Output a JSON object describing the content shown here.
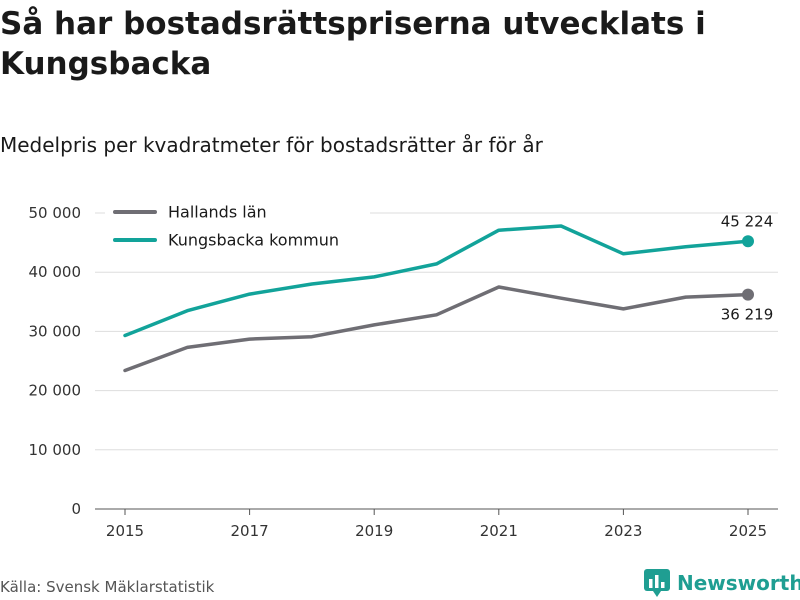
{
  "title": "Så har bostadsrättspriserna utvecklats i Kungsbacka",
  "subtitle": "Medelpris per kvadratmeter för bostadsrätter år för år",
  "source": "Källa: Svensk Mäklarstatistik",
  "brand": {
    "name": "Newsworthy",
    "icon": "bar-chart-logo-icon"
  },
  "colors": {
    "hallands": "#6f6e74",
    "kungsbacka": "#12a39a",
    "grid": "#dddddd",
    "brand": "#1f9e92"
  },
  "chart_data": {
    "type": "line",
    "title": "Så har bostadsrättspriserna utvecklats i Kungsbacka",
    "subtitle": "Medelpris per kvadratmeter för bostadsrätter år för år",
    "xlabel": "",
    "ylabel": "",
    "x": [
      2015,
      2016,
      2017,
      2018,
      2019,
      2020,
      2021,
      2022,
      2023,
      2024,
      2025
    ],
    "x_ticks": [
      "2015",
      "2017",
      "2019",
      "2021",
      "2023",
      "2025"
    ],
    "y_ticks": [
      "0",
      "10 000",
      "20 000",
      "30 000",
      "40 000",
      "50 000"
    ],
    "ylim": [
      0,
      50000
    ],
    "grid": true,
    "legend_position": "top-left",
    "series": [
      {
        "name": "Hallands län",
        "color": "#6f6e74",
        "values": [
          23400,
          27300,
          28700,
          29100,
          31100,
          32800,
          37500,
          35600,
          33800,
          35800,
          36219
        ],
        "end_label": "36 219"
      },
      {
        "name": "Kungsbacka kommun",
        "color": "#12a39a",
        "values": [
          29300,
          33500,
          36300,
          38000,
          39200,
          41400,
          47100,
          47800,
          43100,
          44300,
          45224
        ],
        "end_label": "45 224"
      }
    ]
  }
}
